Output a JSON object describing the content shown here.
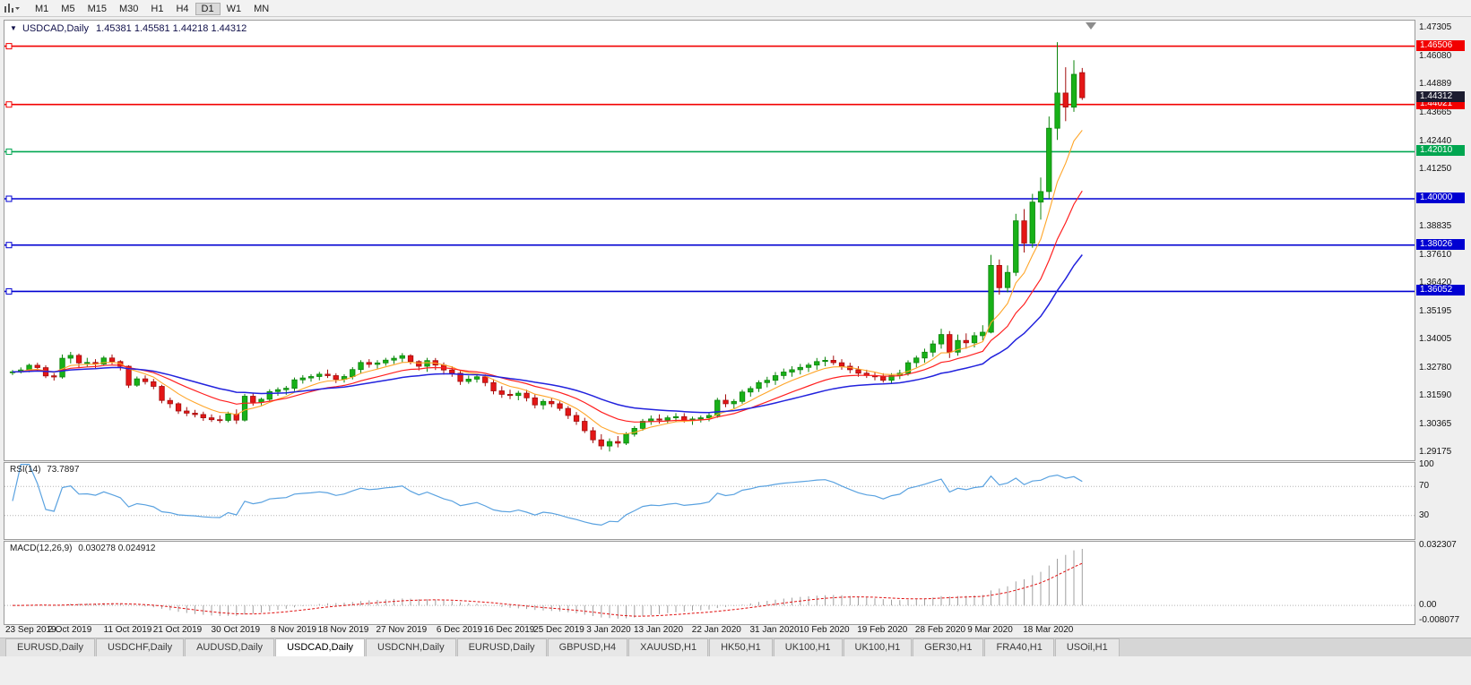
{
  "toolbar": {
    "timeframes": [
      "M1",
      "M5",
      "M15",
      "M30",
      "H1",
      "H4",
      "D1",
      "W1",
      "MN"
    ],
    "active_timeframe": "D1"
  },
  "chart_header": {
    "symbol": "USDCAD,Daily",
    "ohlc": "1.45381 1.45581 1.44218 1.44312"
  },
  "indicators": {
    "rsi_label": "RSI(14)",
    "rsi_value": "73.7897",
    "macd_label": "MACD(12,26,9)",
    "macd_values": "0.030278 0.024912"
  },
  "colors": {
    "bull": "#18b118",
    "bull_edge": "#0c840c",
    "bear": "#e41616",
    "bear_edge": "#a30e0e",
    "ma_fast": "#ffa528",
    "ma_mid": "#ff2020",
    "ma_slow": "#2222dd",
    "rsi": "#5aa2e0",
    "macd_hist": "#a0a0a0",
    "macd_signal": "#e01010",
    "hline_red": "#f20000",
    "hline_green": "#00a650",
    "hline_blue": "#0000d2",
    "price_badge": "#1c1c30"
  },
  "chart_data": {
    "type": "candlestick",
    "symbol": "USDCAD",
    "timeframe": "Daily",
    "price_max": 1.476,
    "price_min": 1.2885,
    "price_ticks": [
      "1.47305",
      "1.46080",
      "1.44889",
      "1.43665",
      "1.42440",
      "1.41250",
      "1.40000",
      "1.38835",
      "1.37610",
      "1.36420",
      "1.35195",
      "1.34005",
      "1.32780",
      "1.31590",
      "1.30365",
      "1.29175"
    ],
    "current_price": "1.44312",
    "hlines": [
      {
        "price": 1.46506,
        "label": "1.46506",
        "color": "red"
      },
      {
        "price": 1.44021,
        "label": "1.44021",
        "color": "red"
      },
      {
        "price": 1.4201,
        "label": "1.42010",
        "color": "green"
      },
      {
        "price": 1.4,
        "label": "1.40000",
        "color": "blue"
      },
      {
        "price": 1.38026,
        "label": "1.38026",
        "color": "blue"
      },
      {
        "price": 1.36052,
        "label": "1.36052",
        "color": "blue"
      }
    ],
    "moving_averages": [
      {
        "period": 7,
        "color_key": "ma_fast",
        "width": 1.1
      },
      {
        "period": 15,
        "color_key": "ma_mid",
        "width": 1.2
      },
      {
        "period": 30,
        "color_key": "ma_slow",
        "width": 1.5
      }
    ],
    "rsi": {
      "period": 14,
      "levels": [
        70,
        30
      ],
      "axis_ticks": [
        100,
        70,
        30
      ],
      "current": 73.7897
    },
    "macd": {
      "fast": 12,
      "slow": 26,
      "signal": 9,
      "axis_ticks": [
        {
          "v": 0.032307,
          "label": "0.032307"
        },
        {
          "v": 0,
          "label": "0.00"
        },
        {
          "v": -0.008077,
          "label": "-0.008077"
        }
      ]
    },
    "date_ticks": [
      {
        "label": "23 Sep 2019",
        "i": 0
      },
      {
        "label": "2 Oct 2019",
        "i": 7
      },
      {
        "label": "11 Oct 2019",
        "i": 14
      },
      {
        "label": "21 Oct 2019",
        "i": 20
      },
      {
        "label": "30 Oct 2019",
        "i": 27
      },
      {
        "label": "8 Nov 2019",
        "i": 34
      },
      {
        "label": "18 Nov 2019",
        "i": 40
      },
      {
        "label": "27 Nov 2019",
        "i": 47
      },
      {
        "label": "6 Dec 2019",
        "i": 54
      },
      {
        "label": "16 Dec 2019",
        "i": 60
      },
      {
        "label": "25 Dec 2019",
        "i": 66
      },
      {
        "label": "3 Jan 2020",
        "i": 72
      },
      {
        "label": "13 Jan 2020",
        "i": 78
      },
      {
        "label": "22 Jan 2020",
        "i": 85
      },
      {
        "label": "31 Jan 2020",
        "i": 92
      },
      {
        "label": "10 Feb 2020",
        "i": 98
      },
      {
        "label": "19 Feb 2020",
        "i": 105
      },
      {
        "label": "28 Feb 2020",
        "i": 112
      },
      {
        "label": "9 Mar 2020",
        "i": 118
      },
      {
        "label": "18 Mar 2020",
        "i": 125
      }
    ],
    "candles": [
      [
        "2019-09-23",
        1.3258,
        1.327,
        1.3248,
        1.3262
      ],
      [
        "2019-09-24",
        1.3262,
        1.3281,
        1.3255,
        1.327
      ],
      [
        "2019-09-25",
        1.327,
        1.3297,
        1.326,
        1.329
      ],
      [
        "2019-09-26",
        1.329,
        1.3301,
        1.3268,
        1.328
      ],
      [
        "2019-09-27",
        1.328,
        1.329,
        1.3235,
        1.3245
      ],
      [
        "2019-09-30",
        1.3245,
        1.3256,
        1.3225,
        1.324
      ],
      [
        "2019-10-01",
        1.324,
        1.3336,
        1.3233,
        1.332
      ],
      [
        "2019-10-02",
        1.332,
        1.3347,
        1.3298,
        1.3332
      ],
      [
        "2019-10-03",
        1.3332,
        1.334,
        1.3278,
        1.33
      ],
      [
        "2019-10-04",
        1.33,
        1.3322,
        1.3284,
        1.3302
      ],
      [
        "2019-10-07",
        1.3302,
        1.3316,
        1.3278,
        1.3295
      ],
      [
        "2019-10-08",
        1.3295,
        1.333,
        1.3288,
        1.3321
      ],
      [
        "2019-10-09",
        1.3321,
        1.3336,
        1.3294,
        1.3306
      ],
      [
        "2019-10-10",
        1.3306,
        1.3312,
        1.3268,
        1.3286
      ],
      [
        "2019-10-11",
        1.3286,
        1.329,
        1.3193,
        1.3205
      ],
      [
        "2019-10-14",
        1.3205,
        1.3242,
        1.3198,
        1.3232
      ],
      [
        "2019-10-15",
        1.3232,
        1.3247,
        1.3208,
        1.322
      ],
      [
        "2019-10-16",
        1.322,
        1.3232,
        1.3188,
        1.32
      ],
      [
        "2019-10-17",
        1.32,
        1.3207,
        1.3128,
        1.314
      ],
      [
        "2019-10-18",
        1.314,
        1.3152,
        1.3108,
        1.3126
      ],
      [
        "2019-10-21",
        1.3126,
        1.3132,
        1.3083,
        1.3095
      ],
      [
        "2019-10-22",
        1.3095,
        1.3112,
        1.3073,
        1.3086
      ],
      [
        "2019-10-23",
        1.3086,
        1.31,
        1.3068,
        1.308
      ],
      [
        "2019-10-24",
        1.308,
        1.3092,
        1.3053,
        1.3066
      ],
      [
        "2019-10-25",
        1.3066,
        1.3081,
        1.3048,
        1.3058
      ],
      [
        "2019-10-28",
        1.3058,
        1.3076,
        1.3044,
        1.3055
      ],
      [
        "2019-10-29",
        1.3055,
        1.3092,
        1.3047,
        1.3082
      ],
      [
        "2019-10-30",
        1.3082,
        1.3102,
        1.304,
        1.3056
      ],
      [
        "2019-10-31",
        1.3056,
        1.3168,
        1.305,
        1.3158
      ],
      [
        "2019-11-01",
        1.3158,
        1.3172,
        1.3118,
        1.3132
      ],
      [
        "2019-11-04",
        1.3132,
        1.3152,
        1.312,
        1.3145
      ],
      [
        "2019-11-05",
        1.3145,
        1.3188,
        1.3136,
        1.3178
      ],
      [
        "2019-11-06",
        1.3178,
        1.3196,
        1.316,
        1.3186
      ],
      [
        "2019-11-07",
        1.3186,
        1.3202,
        1.3164,
        1.3192
      ],
      [
        "2019-11-08",
        1.3192,
        1.3238,
        1.318,
        1.3228
      ],
      [
        "2019-11-11",
        1.3228,
        1.3248,
        1.3212,
        1.3236
      ],
      [
        "2019-11-12",
        1.3236,
        1.3252,
        1.322,
        1.3242
      ],
      [
        "2019-11-13",
        1.3242,
        1.3262,
        1.3226,
        1.3252
      ],
      [
        "2019-11-14",
        1.3252,
        1.3272,
        1.3236,
        1.3246
      ],
      [
        "2019-11-15",
        1.3246,
        1.3256,
        1.3214,
        1.323
      ],
      [
        "2019-11-18",
        1.323,
        1.3252,
        1.3216,
        1.3242
      ],
      [
        "2019-11-19",
        1.3242,
        1.3282,
        1.323,
        1.3272
      ],
      [
        "2019-11-20",
        1.3272,
        1.3312,
        1.3256,
        1.3302
      ],
      [
        "2019-11-21",
        1.3302,
        1.3316,
        1.328,
        1.3294
      ],
      [
        "2019-11-22",
        1.3294,
        1.3312,
        1.3276,
        1.33
      ],
      [
        "2019-11-25",
        1.33,
        1.3322,
        1.3288,
        1.3312
      ],
      [
        "2019-11-26",
        1.3312,
        1.3331,
        1.3296,
        1.332
      ],
      [
        "2019-11-27",
        1.332,
        1.3342,
        1.3302,
        1.3331
      ],
      [
        "2019-11-28",
        1.3331,
        1.3337,
        1.3294,
        1.3306
      ],
      [
        "2019-11-29",
        1.3306,
        1.3312,
        1.3268,
        1.3286
      ],
      [
        "2019-12-02",
        1.3286,
        1.3322,
        1.3262,
        1.331
      ],
      [
        "2019-12-03",
        1.331,
        1.3321,
        1.327,
        1.3291
      ],
      [
        "2019-12-04",
        1.3291,
        1.3302,
        1.325,
        1.327
      ],
      [
        "2019-12-05",
        1.327,
        1.3286,
        1.3241,
        1.3256
      ],
      [
        "2019-12-06",
        1.3256,
        1.3266,
        1.3206,
        1.3221
      ],
      [
        "2019-12-09",
        1.3221,
        1.3246,
        1.3211,
        1.3231
      ],
      [
        "2019-12-10",
        1.3231,
        1.3251,
        1.3216,
        1.3241
      ],
      [
        "2019-12-11",
        1.3241,
        1.3251,
        1.3201,
        1.3216
      ],
      [
        "2019-12-12",
        1.3216,
        1.3231,
        1.3166,
        1.3181
      ],
      [
        "2019-12-13",
        1.3181,
        1.3201,
        1.3151,
        1.3166
      ],
      [
        "2019-12-16",
        1.3166,
        1.3186,
        1.3146,
        1.3161
      ],
      [
        "2019-12-17",
        1.3161,
        1.3181,
        1.3141,
        1.3171
      ],
      [
        "2019-12-18",
        1.3171,
        1.3186,
        1.3136,
        1.3151
      ],
      [
        "2019-12-19",
        1.3151,
        1.3166,
        1.3106,
        1.3121
      ],
      [
        "2019-12-20",
        1.3121,
        1.3146,
        1.3101,
        1.3136
      ],
      [
        "2019-12-23",
        1.3136,
        1.3151,
        1.3111,
        1.3126
      ],
      [
        "2019-12-24",
        1.3126,
        1.3136,
        1.3096,
        1.3106
      ],
      [
        "2019-12-26",
        1.3106,
        1.3116,
        1.3061,
        1.3076
      ],
      [
        "2019-12-27",
        1.3076,
        1.3091,
        1.3036,
        1.3051
      ],
      [
        "2019-12-30",
        1.3051,
        1.3066,
        1.3001,
        1.3011
      ],
      [
        "2019-12-31",
        1.3011,
        1.3026,
        1.2958,
        1.2972
      ],
      [
        "2020-01-02",
        1.2972,
        1.2996,
        1.293,
        1.2946
      ],
      [
        "2020-01-03",
        1.2946,
        1.2978,
        1.2922,
        1.2965
      ],
      [
        "2020-01-06",
        1.2965,
        1.2988,
        1.294,
        1.2958
      ],
      [
        "2020-01-07",
        1.2958,
        1.3005,
        1.295,
        1.2996
      ],
      [
        "2020-01-08",
        1.2996,
        1.3031,
        1.2986,
        1.3021
      ],
      [
        "2020-01-09",
        1.3021,
        1.3061,
        1.3011,
        1.3051
      ],
      [
        "2020-01-10",
        1.3051,
        1.3076,
        1.3036,
        1.3061
      ],
      [
        "2020-01-13",
        1.3061,
        1.3081,
        1.3041,
        1.3056
      ],
      [
        "2020-01-14",
        1.3056,
        1.3076,
        1.3041,
        1.3066
      ],
      [
        "2020-01-15",
        1.3066,
        1.3086,
        1.3051,
        1.3071
      ],
      [
        "2020-01-16",
        1.3071,
        1.3086,
        1.3046,
        1.3056
      ],
      [
        "2020-01-17",
        1.3056,
        1.3071,
        1.3036,
        1.3061
      ],
      [
        "2020-01-20",
        1.3061,
        1.3076,
        1.3046,
        1.3066
      ],
      [
        "2020-01-21",
        1.3066,
        1.3086,
        1.3051,
        1.3076
      ],
      [
        "2020-01-22",
        1.3076,
        1.3151,
        1.3066,
        1.3141
      ],
      [
        "2020-01-23",
        1.3141,
        1.3166,
        1.3111,
        1.3126
      ],
      [
        "2020-01-24",
        1.3126,
        1.3146,
        1.3106,
        1.3136
      ],
      [
        "2020-01-27",
        1.3136,
        1.3186,
        1.3126,
        1.3176
      ],
      [
        "2020-01-28",
        1.3176,
        1.3201,
        1.3156,
        1.3191
      ],
      [
        "2020-01-29",
        1.3191,
        1.3226,
        1.3176,
        1.3216
      ],
      [
        "2020-01-30",
        1.3216,
        1.3241,
        1.3196,
        1.3226
      ],
      [
        "2020-01-31",
        1.3226,
        1.3261,
        1.3206,
        1.3246
      ],
      [
        "2020-02-03",
        1.3246,
        1.3276,
        1.3231,
        1.3261
      ],
      [
        "2020-02-04",
        1.3261,
        1.3286,
        1.3241,
        1.3271
      ],
      [
        "2020-02-05",
        1.3271,
        1.3296,
        1.3251,
        1.3281
      ],
      [
        "2020-02-06",
        1.3281,
        1.3301,
        1.3261,
        1.3291
      ],
      [
        "2020-02-07",
        1.3291,
        1.3321,
        1.3271,
        1.3306
      ],
      [
        "2020-02-10",
        1.3306,
        1.3326,
        1.3286,
        1.3311
      ],
      [
        "2020-02-11",
        1.3311,
        1.3331,
        1.3291,
        1.3301
      ],
      [
        "2020-02-12",
        1.3301,
        1.3316,
        1.3271,
        1.3286
      ],
      [
        "2020-02-13",
        1.3286,
        1.3301,
        1.3256,
        1.3271
      ],
      [
        "2020-02-14",
        1.3271,
        1.3286,
        1.3241,
        1.3256
      ],
      [
        "2020-02-17",
        1.3256,
        1.3271,
        1.3236,
        1.3246
      ],
      [
        "2020-02-18",
        1.3246,
        1.3261,
        1.3226,
        1.3241
      ],
      [
        "2020-02-19",
        1.3241,
        1.3256,
        1.3216,
        1.3226
      ],
      [
        "2020-02-20",
        1.3226,
        1.3256,
        1.3211,
        1.3246
      ],
      [
        "2020-02-21",
        1.3246,
        1.3271,
        1.3231,
        1.3256
      ],
      [
        "2020-02-24",
        1.3256,
        1.3311,
        1.3246,
        1.3301
      ],
      [
        "2020-02-25",
        1.3301,
        1.3331,
        1.3281,
        1.3321
      ],
      [
        "2020-02-26",
        1.3321,
        1.3361,
        1.3301,
        1.3346
      ],
      [
        "2020-02-27",
        1.3346,
        1.3396,
        1.3326,
        1.3381
      ],
      [
        "2020-02-28",
        1.3381,
        1.3446,
        1.3361,
        1.3421
      ],
      [
        "2020-03-02",
        1.3421,
        1.3436,
        1.3321,
        1.3346
      ],
      [
        "2020-03-03",
        1.3346,
        1.3421,
        1.3331,
        1.3396
      ],
      [
        "2020-03-04",
        1.3396,
        1.3426,
        1.3361,
        1.3386
      ],
      [
        "2020-03-05",
        1.3386,
        1.3431,
        1.3366,
        1.3416
      ],
      [
        "2020-03-06",
        1.3416,
        1.3461,
        1.3396,
        1.3431
      ],
      [
        "2020-03-09",
        1.3431,
        1.3761,
        1.3426,
        1.3716
      ],
      [
        "2020-03-10",
        1.3716,
        1.3741,
        1.3591,
        1.3621
      ],
      [
        "2020-03-11",
        1.3621,
        1.3716,
        1.3601,
        1.3686
      ],
      [
        "2020-03-12",
        1.3686,
        1.3936,
        1.3671,
        1.3906
      ],
      [
        "2020-03-13",
        1.3906,
        1.3956,
        1.3771,
        1.3811
      ],
      [
        "2020-03-16",
        1.3811,
        1.4021,
        1.3791,
        1.3986
      ],
      [
        "2020-03-17",
        1.3986,
        1.4091,
        1.3911,
        1.4031
      ],
      [
        "2020-03-18",
        1.4031,
        1.4351,
        1.4001,
        1.4301
      ],
      [
        "2020-03-19",
        1.4301,
        1.4668,
        1.4251,
        1.4451
      ],
      [
        "2020-03-20",
        1.4451,
        1.4561,
        1.4331,
        1.4391
      ],
      [
        "2020-03-23",
        1.4391,
        1.4591,
        1.4371,
        1.4531
      ],
      [
        "2020-03-24",
        1.45381,
        1.45581,
        1.44218,
        1.44312
      ]
    ]
  },
  "tabs": [
    {
      "label": "EURUSD,Daily",
      "active": false
    },
    {
      "label": "USDCHF,Daily",
      "active": false
    },
    {
      "label": "AUDUSD,Daily",
      "active": false
    },
    {
      "label": "USDCAD,Daily",
      "active": true
    },
    {
      "label": "USDCNH,Daily",
      "active": false
    },
    {
      "label": "EURUSD,Daily",
      "active": false
    },
    {
      "label": "GBPUSD,H4",
      "active": false
    },
    {
      "label": "XAUUSD,H1",
      "active": false
    },
    {
      "label": "HK50,H1",
      "active": false
    },
    {
      "label": "UK100,H1",
      "active": false
    },
    {
      "label": "UK100,H1",
      "active": false
    },
    {
      "label": "GER30,H1",
      "active": false
    },
    {
      "label": "FRA40,H1",
      "active": false
    },
    {
      "label": "USOil,H1",
      "active": false
    }
  ]
}
